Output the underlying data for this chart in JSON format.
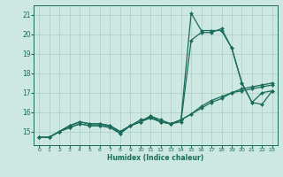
{
  "xlabel": "Humidex (Indice chaleur)",
  "xlim": [
    -0.5,
    23.5
  ],
  "ylim": [
    14.3,
    21.5
  ],
  "xticks": [
    0,
    1,
    2,
    3,
    4,
    5,
    6,
    7,
    8,
    9,
    10,
    11,
    12,
    13,
    14,
    15,
    16,
    17,
    18,
    19,
    20,
    21,
    22,
    23
  ],
  "yticks": [
    15,
    16,
    17,
    18,
    19,
    20,
    21
  ],
  "bg_color": "#cce8e0",
  "line_color": "#1a6b5a",
  "grid_color": "#aaccC4",
  "lines": [
    [
      14.7,
      14.7,
      15.0,
      15.2,
      15.4,
      15.3,
      15.3,
      15.3,
      14.9,
      15.3,
      15.6,
      15.7,
      15.5,
      15.4,
      15.6,
      21.1,
      20.2,
      20.2,
      20.2,
      19.3,
      17.5,
      16.5,
      16.4,
      17.1
    ],
    [
      14.7,
      14.7,
      15.0,
      15.2,
      15.4,
      15.3,
      15.3,
      15.2,
      14.9,
      15.3,
      15.5,
      15.7,
      15.5,
      15.4,
      15.5,
      19.7,
      20.1,
      20.1,
      20.3,
      19.3,
      17.5,
      16.5,
      17.0,
      17.1
    ],
    [
      14.7,
      14.7,
      15.0,
      15.3,
      15.5,
      15.4,
      15.4,
      15.3,
      15.0,
      15.3,
      15.5,
      15.8,
      15.5,
      15.4,
      15.6,
      15.9,
      16.2,
      16.5,
      16.7,
      17.0,
      17.1,
      17.2,
      17.3,
      17.4
    ],
    [
      14.7,
      14.7,
      15.0,
      15.3,
      15.5,
      15.4,
      15.4,
      15.3,
      15.0,
      15.3,
      15.5,
      15.8,
      15.6,
      15.4,
      15.6,
      15.9,
      16.3,
      16.6,
      16.8,
      17.0,
      17.2,
      17.3,
      17.4,
      17.5
    ]
  ]
}
